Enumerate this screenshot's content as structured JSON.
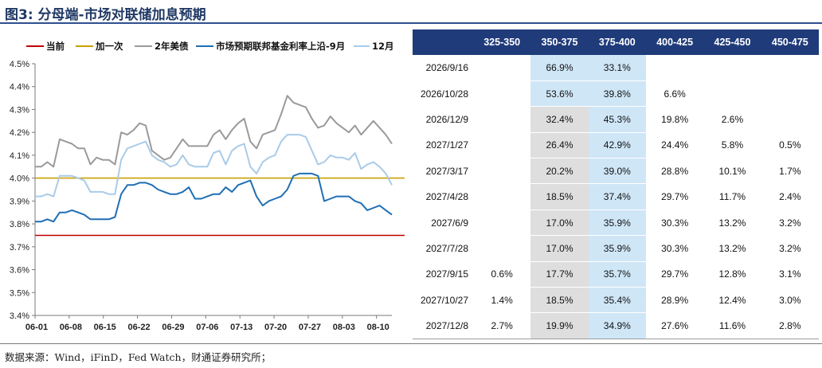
{
  "title": "图3: 分母端-市场对联储加息预期",
  "source": "数据来源：Wind，iFinD，Fed Watch，财通证券研究所；",
  "chart_data": {
    "type": "line",
    "xlabel": "",
    "ylabel": "",
    "ylim": [
      3.4,
      4.5
    ],
    "yticks": [
      "3.4%",
      "3.5%",
      "3.6%",
      "3.7%",
      "3.8%",
      "3.9%",
      "4.0%",
      "4.1%",
      "4.2%",
      "4.3%",
      "4.4%",
      "4.5%"
    ],
    "xticks": [
      "06-01",
      "06-08",
      "06-15",
      "06-22",
      "06-29",
      "07-06",
      "07-13",
      "07-20",
      "07-27",
      "08-03",
      "08-10"
    ],
    "grid": false,
    "legend_position": "top",
    "series": [
      {
        "name": "当前",
        "color": "#c00000",
        "values": [
          [
            0,
            3.75
          ],
          [
            70,
            3.75
          ]
        ]
      },
      {
        "name": "加一次",
        "color": "#c8a000",
        "values": [
          [
            0,
            4.0
          ],
          [
            70,
            4.0
          ]
        ]
      },
      {
        "name": "2年美债",
        "color": "#9a9a9a",
        "values": [
          [
            0,
            4.05
          ],
          [
            1,
            4.05
          ],
          [
            2,
            4.07
          ],
          [
            3,
            4.05
          ],
          [
            4,
            4.17
          ],
          [
            5,
            4.16
          ],
          [
            6,
            4.15
          ],
          [
            7,
            4.13
          ],
          [
            8,
            4.13
          ],
          [
            9,
            4.06
          ],
          [
            10,
            4.09
          ],
          [
            11,
            4.08
          ],
          [
            12,
            4.08
          ],
          [
            13,
            4.06
          ],
          [
            14,
            4.2
          ],
          [
            15,
            4.19
          ],
          [
            16,
            4.21
          ],
          [
            17,
            4.24
          ],
          [
            18,
            4.23
          ],
          [
            19,
            4.12
          ],
          [
            20,
            4.1
          ],
          [
            21,
            4.08
          ],
          [
            22,
            4.09
          ],
          [
            23,
            4.13
          ],
          [
            24,
            4.17
          ],
          [
            25,
            4.14
          ],
          [
            26,
            4.14
          ],
          [
            27,
            4.14
          ],
          [
            28,
            4.14
          ],
          [
            29,
            4.19
          ],
          [
            30,
            4.21
          ],
          [
            31,
            4.17
          ],
          [
            32,
            4.21
          ],
          [
            33,
            4.24
          ],
          [
            34,
            4.26
          ],
          [
            35,
            4.16
          ],
          [
            36,
            4.13
          ],
          [
            37,
            4.19
          ],
          [
            38,
            4.2
          ],
          [
            39,
            4.21
          ],
          [
            40,
            4.28
          ],
          [
            41,
            4.36
          ],
          [
            42,
            4.33
          ],
          [
            43,
            4.32
          ],
          [
            44,
            4.31
          ],
          [
            45,
            4.26
          ],
          [
            46,
            4.22
          ],
          [
            47,
            4.23
          ],
          [
            48,
            4.27
          ],
          [
            49,
            4.24
          ],
          [
            50,
            4.22
          ],
          [
            51,
            4.2
          ],
          [
            52,
            4.23
          ],
          [
            53,
            4.19
          ],
          [
            54,
            4.22
          ],
          [
            55,
            4.25
          ],
          [
            56,
            4.22
          ],
          [
            57,
            4.19
          ],
          [
            58,
            4.15
          ]
        ]
      },
      {
        "name": "市场预期联邦基金利率上沿-9月",
        "color": "#1f6fb5",
        "values": [
          [
            0,
            3.81
          ],
          [
            1,
            3.81
          ],
          [
            2,
            3.82
          ],
          [
            3,
            3.81
          ],
          [
            4,
            3.85
          ],
          [
            5,
            3.85
          ],
          [
            6,
            3.86
          ],
          [
            7,
            3.85
          ],
          [
            8,
            3.84
          ],
          [
            9,
            3.82
          ],
          [
            10,
            3.82
          ],
          [
            11,
            3.82
          ],
          [
            12,
            3.82
          ],
          [
            13,
            3.83
          ],
          [
            14,
            3.93
          ],
          [
            15,
            3.97
          ],
          [
            16,
            3.97
          ],
          [
            17,
            3.98
          ],
          [
            18,
            3.98
          ],
          [
            19,
            3.97
          ],
          [
            20,
            3.95
          ],
          [
            21,
            3.94
          ],
          [
            22,
            3.93
          ],
          [
            23,
            3.93
          ],
          [
            24,
            3.94
          ],
          [
            25,
            3.96
          ],
          [
            26,
            3.91
          ],
          [
            27,
            3.91
          ],
          [
            28,
            3.92
          ],
          [
            29,
            3.93
          ],
          [
            30,
            3.93
          ],
          [
            31,
            3.96
          ],
          [
            32,
            3.94
          ],
          [
            33,
            3.97
          ],
          [
            34,
            3.98
          ],
          [
            35,
            3.99
          ],
          [
            36,
            3.92
          ],
          [
            37,
            3.88
          ],
          [
            38,
            3.9
          ],
          [
            39,
            3.91
          ],
          [
            40,
            3.92
          ],
          [
            41,
            3.95
          ],
          [
            42,
            4.01
          ],
          [
            43,
            4.02
          ],
          [
            44,
            4.02
          ],
          [
            45,
            4.02
          ],
          [
            46,
            4.01
          ],
          [
            47,
            3.9
          ],
          [
            48,
            3.91
          ],
          [
            49,
            3.92
          ],
          [
            50,
            3.92
          ],
          [
            51,
            3.92
          ],
          [
            52,
            3.9
          ],
          [
            53,
            3.89
          ],
          [
            54,
            3.86
          ],
          [
            55,
            3.87
          ],
          [
            56,
            3.88
          ],
          [
            57,
            3.86
          ],
          [
            58,
            3.84
          ]
        ]
      },
      {
        "name": "12月",
        "color": "#a9cbe8",
        "values": [
          [
            0,
            3.92
          ],
          [
            1,
            3.92
          ],
          [
            2,
            3.93
          ],
          [
            3,
            3.92
          ],
          [
            4,
            4.01
          ],
          [
            5,
            4.01
          ],
          [
            6,
            4.01
          ],
          [
            7,
            4.0
          ],
          [
            8,
            3.99
          ],
          [
            9,
            3.94
          ],
          [
            10,
            3.94
          ],
          [
            11,
            3.94
          ],
          [
            12,
            3.93
          ],
          [
            13,
            3.93
          ],
          [
            14,
            4.08
          ],
          [
            15,
            4.13
          ],
          [
            16,
            4.14
          ],
          [
            17,
            4.15
          ],
          [
            18,
            4.16
          ],
          [
            19,
            4.1
          ],
          [
            20,
            4.08
          ],
          [
            21,
            4.07
          ],
          [
            22,
            4.05
          ],
          [
            23,
            4.06
          ],
          [
            24,
            4.1
          ],
          [
            25,
            4.06
          ],
          [
            26,
            4.05
          ],
          [
            27,
            4.05
          ],
          [
            28,
            4.05
          ],
          [
            29,
            4.11
          ],
          [
            30,
            4.12
          ],
          [
            31,
            4.06
          ],
          [
            32,
            4.12
          ],
          [
            33,
            4.14
          ],
          [
            34,
            4.15
          ],
          [
            35,
            4.05
          ],
          [
            36,
            4.02
          ],
          [
            37,
            4.07
          ],
          [
            38,
            4.09
          ],
          [
            39,
            4.1
          ],
          [
            40,
            4.16
          ],
          [
            41,
            4.19
          ],
          [
            42,
            4.19
          ],
          [
            43,
            4.19
          ],
          [
            44,
            4.18
          ],
          [
            45,
            4.12
          ],
          [
            46,
            4.06
          ],
          [
            47,
            4.07
          ],
          [
            48,
            4.1
          ],
          [
            49,
            4.09
          ],
          [
            50,
            4.09
          ],
          [
            51,
            4.08
          ],
          [
            52,
            4.11
          ],
          [
            53,
            4.04
          ],
          [
            54,
            4.06
          ],
          [
            55,
            4.07
          ],
          [
            56,
            4.05
          ],
          [
            57,
            4.02
          ],
          [
            58,
            3.97
          ]
        ]
      }
    ]
  },
  "table": {
    "columns": [
      "",
      "325-350",
      "350-375",
      "375-400",
      "400-425",
      "425-450",
      "450-475"
    ],
    "rows": [
      {
        "date": "2026/9/16",
        "cells": [
          "",
          "66.9%",
          "33.1%",
          "",
          "",
          ""
        ]
      },
      {
        "date": "2026/10/28",
        "cells": [
          "",
          "53.6%",
          "39.8%",
          "6.6%",
          "",
          ""
        ]
      },
      {
        "date": "2026/12/9",
        "cells": [
          "",
          "32.4%",
          "45.3%",
          "19.8%",
          "2.6%",
          ""
        ]
      },
      {
        "date": "2027/1/27",
        "cells": [
          "",
          "26.4%",
          "42.9%",
          "24.4%",
          "5.8%",
          "0.5%"
        ]
      },
      {
        "date": "2027/3/17",
        "cells": [
          "",
          "20.2%",
          "39.0%",
          "28.8%",
          "10.1%",
          "1.7%"
        ]
      },
      {
        "date": "2027/4/28",
        "cells": [
          "",
          "18.5%",
          "37.4%",
          "29.7%",
          "11.7%",
          "2.4%"
        ]
      },
      {
        "date": "2027/6/9",
        "cells": [
          "",
          "17.0%",
          "35.9%",
          "30.3%",
          "13.2%",
          "3.2%"
        ]
      },
      {
        "date": "2027/7/28",
        "cells": [
          "",
          "17.0%",
          "35.9%",
          "30.3%",
          "13.2%",
          "3.2%"
        ]
      },
      {
        "date": "2027/9/15",
        "cells": [
          "0.6%",
          "17.7%",
          "35.7%",
          "29.7%",
          "12.8%",
          "3.1%"
        ]
      },
      {
        "date": "2027/10/27",
        "cells": [
          "1.4%",
          "18.5%",
          "35.4%",
          "28.9%",
          "12.4%",
          "3.0%"
        ]
      },
      {
        "date": "2027/12/8",
        "cells": [
          "2.7%",
          "19.9%",
          "34.9%",
          "27.6%",
          "11.6%",
          "2.8%"
        ]
      }
    ],
    "highlight_colors": {
      "blue": "#cfe6f7",
      "gray": "#dedede",
      "header": "#1f3b7a"
    }
  }
}
